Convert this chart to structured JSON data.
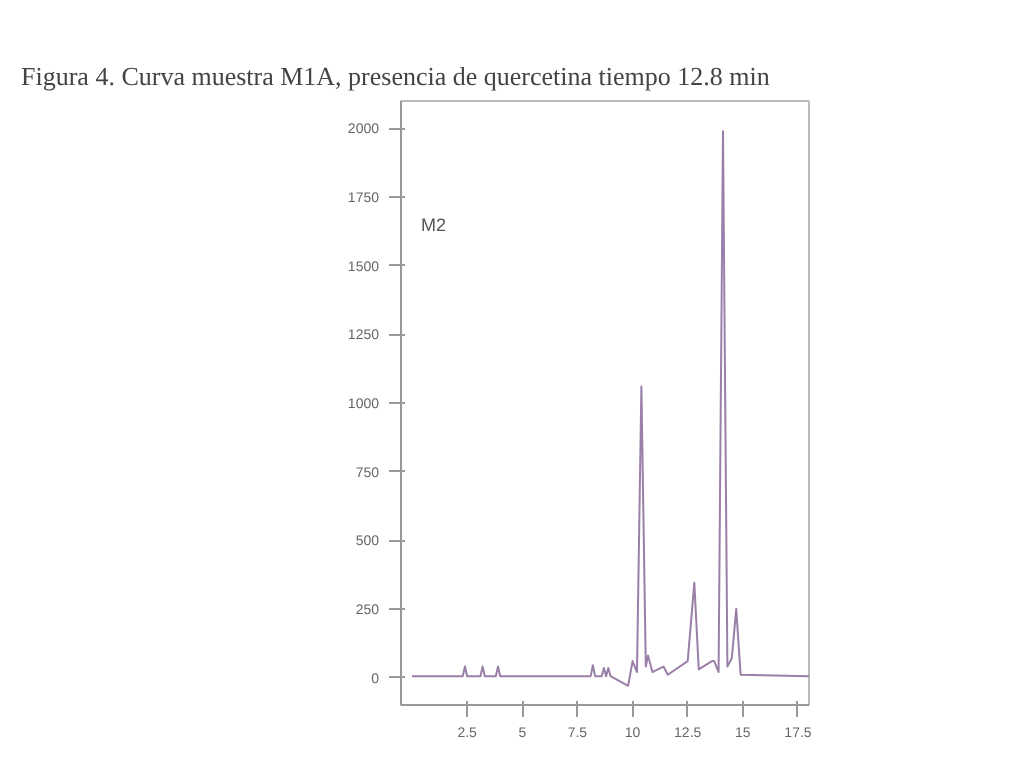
{
  "chart_data": {
    "type": "line",
    "title": "Figura 4. Curva muestra M1A, presencia de quercetina tiempo 12.8 min",
    "x": [
      0,
      2.3,
      2.4,
      2.5,
      3.1,
      3.2,
      3.3,
      3.8,
      3.9,
      4.0,
      8.1,
      8.2,
      8.3,
      8.6,
      8.7,
      8.8,
      8.9,
      9.0,
      9.8,
      10.0,
      10.2,
      10.4,
      10.6,
      10.7,
      10.9,
      11.4,
      11.6,
      12.5,
      12.8,
      13.0,
      13.6,
      13.7,
      13.9,
      14.1,
      14.3,
      14.5,
      14.7,
      14.9,
      18
    ],
    "series": [
      {
        "color": "#9a7fa8",
        "values": [
          5,
          5,
          40,
          5,
          5,
          40,
          5,
          5,
          40,
          5,
          5,
          45,
          5,
          5,
          35,
          5,
          35,
          5,
          -30,
          60,
          20,
          1060,
          40,
          80,
          20,
          40,
          10,
          60,
          345,
          30,
          60,
          60,
          20,
          1990,
          40,
          70,
          250,
          10,
          5
        ]
      }
    ],
    "xlim": [
      -0.5,
      18
    ],
    "ylim": [
      -100,
      2100
    ],
    "xticks": [
      2.5,
      5,
      7.5,
      10,
      12.5,
      15,
      17.5
    ],
    "yticks": [
      0,
      250,
      500,
      750,
      1000,
      1250,
      1500,
      1750,
      2000
    ],
    "annotations": [
      "M2"
    ],
    "grid": false,
    "marker": "none",
    "line_style": "solid"
  }
}
